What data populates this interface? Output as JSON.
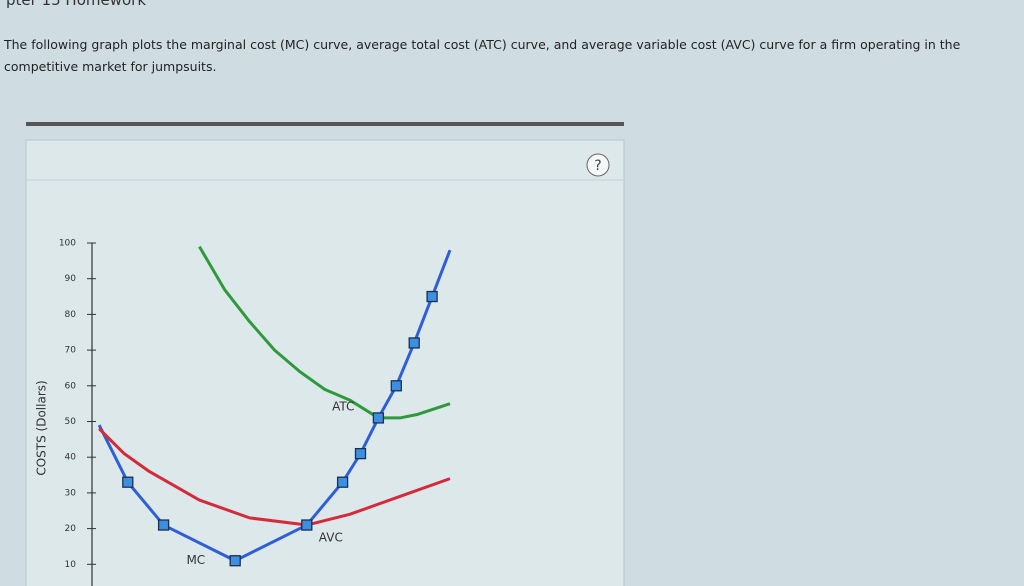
{
  "header": {
    "title": "pter 15 Homework"
  },
  "question": "The following graph plots the marginal cost (MC) curve, average total cost (ATC) curve, and average variable cost (AVC) curve for a firm operating in the competitive market for jumpsuits.",
  "help": "?",
  "chart_data": {
    "type": "line",
    "y_label": "COSTS (Dollars)",
    "xlim": [
      0,
      10
    ],
    "ylim": [
      0,
      100
    ],
    "yticks": [
      10,
      20,
      30,
      40,
      50,
      60,
      70,
      80,
      90,
      100
    ],
    "series": [
      {
        "name": "MC",
        "color": "#2f5fd6",
        "x": [
          0.2,
          1,
          2,
          4,
          6,
          7,
          7.5,
          8,
          8.5,
          9,
          9.5,
          10
        ],
        "values": [
          49,
          33,
          21,
          11,
          21,
          33,
          41,
          51,
          60,
          72,
          85,
          98
        ],
        "markers": true
      },
      {
        "name": "ATC",
        "color": "#2e9a3c",
        "x": [
          3,
          3.7,
          4.4,
          5.1,
          5.8,
          6.5,
          7.2,
          8,
          8.6,
          9.1,
          10
        ],
        "values": [
          99,
          87,
          78,
          70,
          64,
          59,
          56,
          51,
          51,
          52,
          55
        ]
      },
      {
        "name": "AVC",
        "color": "#d42a3a",
        "x": [
          0.2,
          0.9,
          1.6,
          3,
          4.4,
          6,
          7.2,
          8.6,
          10
        ],
        "values": [
          48,
          41,
          36,
          28,
          23,
          21,
          24,
          29,
          34
        ]
      }
    ]
  }
}
